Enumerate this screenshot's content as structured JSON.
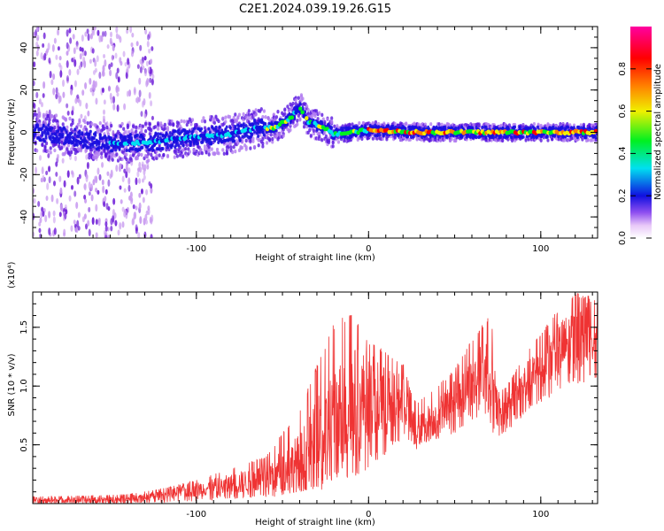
{
  "title": "C2E1.2024.039.19.26.G15",
  "chart_data": [
    {
      "type": "heatmap",
      "xlabel": "Height of straight line (km)",
      "ylabel": "Frequency (Hz)",
      "xlim": [
        -195,
        133
      ],
      "ylim": [
        -50,
        50
      ],
      "xticks": [
        -100,
        0,
        100
      ],
      "yticks": [
        -40,
        -20,
        0,
        20,
        40
      ],
      "colorbar": {
        "label": "Normalized spectral amplitude",
        "range": [
          0,
          1
        ],
        "ticks": [
          "0.0",
          "0.2",
          "0.4",
          "0.6",
          "0.8"
        ],
        "colors": [
          "#ffffff",
          "#e8c8f8",
          "#9050f0",
          "#1010e0",
          "#00e0f0",
          "#00f020",
          "#f0f000",
          "#ff8000",
          "#ff0000",
          "#ff00a0"
        ]
      },
      "ridge_frequency_hz": [
        {
          "x": -190,
          "y": 0
        },
        {
          "x": -150,
          "y": -5
        },
        {
          "x": -130,
          "y": -5
        },
        {
          "x": -100,
          "y": -2
        },
        {
          "x": -80,
          "y": -1
        },
        {
          "x": -65,
          "y": 2
        },
        {
          "x": -55,
          "y": 2
        },
        {
          "x": -45,
          "y": 7
        },
        {
          "x": -40,
          "y": 12
        },
        {
          "x": -35,
          "y": 5
        },
        {
          "x": -25,
          "y": 2
        },
        {
          "x": -20,
          "y": -1
        },
        {
          "x": -10,
          "y": 0
        },
        {
          "x": 0,
          "y": 1
        },
        {
          "x": 30,
          "y": 0
        },
        {
          "x": 60,
          "y": 0
        },
        {
          "x": 90,
          "y": 0
        },
        {
          "x": 130,
          "y": 0
        }
      ]
    },
    {
      "type": "line",
      "xlabel": "Height of straight line (km)",
      "ylabel": "SNR (10 * v/v)",
      "y_multiplier": "(x10⁴)",
      "xlim": [
        -195,
        133
      ],
      "ylim": [
        0,
        1.8
      ],
      "xticks": [
        -100,
        0,
        100
      ],
      "yticks": [
        "0.5",
        "1.0",
        "1.5"
      ],
      "series_color": "#ef3333",
      "envelope": {
        "x": [
          -195,
          -160,
          -140,
          -120,
          -100,
          -80,
          -60,
          -50,
          -40,
          -30,
          -20,
          -10,
          0,
          10,
          15,
          20,
          25,
          28,
          30,
          40,
          50,
          60,
          70,
          72,
          74,
          76,
          80,
          90,
          100,
          110,
          120,
          133
        ],
        "low": [
          0.0,
          0.0,
          0.0,
          0.01,
          0.02,
          0.04,
          0.05,
          0.06,
          0.08,
          0.1,
          0.15,
          0.2,
          0.3,
          0.4,
          0.5,
          0.55,
          0.5,
          0.45,
          0.5,
          0.55,
          0.6,
          0.7,
          0.75,
          0.6,
          0.55,
          0.55,
          0.6,
          0.75,
          0.85,
          0.95,
          1.0,
          1.05
        ],
        "mid": [
          0.03,
          0.03,
          0.04,
          0.07,
          0.12,
          0.16,
          0.22,
          0.28,
          0.35,
          0.5,
          0.7,
          0.85,
          0.9,
          0.85,
          0.85,
          0.9,
          0.7,
          0.6,
          0.65,
          0.75,
          0.9,
          1.0,
          1.15,
          1.1,
          0.8,
          0.75,
          0.8,
          1.0,
          1.15,
          1.3,
          1.4,
          1.5
        ],
        "high": [
          0.06,
          0.07,
          0.08,
          0.13,
          0.2,
          0.3,
          0.4,
          0.6,
          0.8,
          1.2,
          1.55,
          1.65,
          1.4,
          1.3,
          1.25,
          1.2,
          0.95,
          0.85,
          0.9,
          1.0,
          1.15,
          1.4,
          1.6,
          1.5,
          1.0,
          0.95,
          1.0,
          1.25,
          1.45,
          1.65,
          1.8,
          1.75
        ]
      }
    }
  ]
}
